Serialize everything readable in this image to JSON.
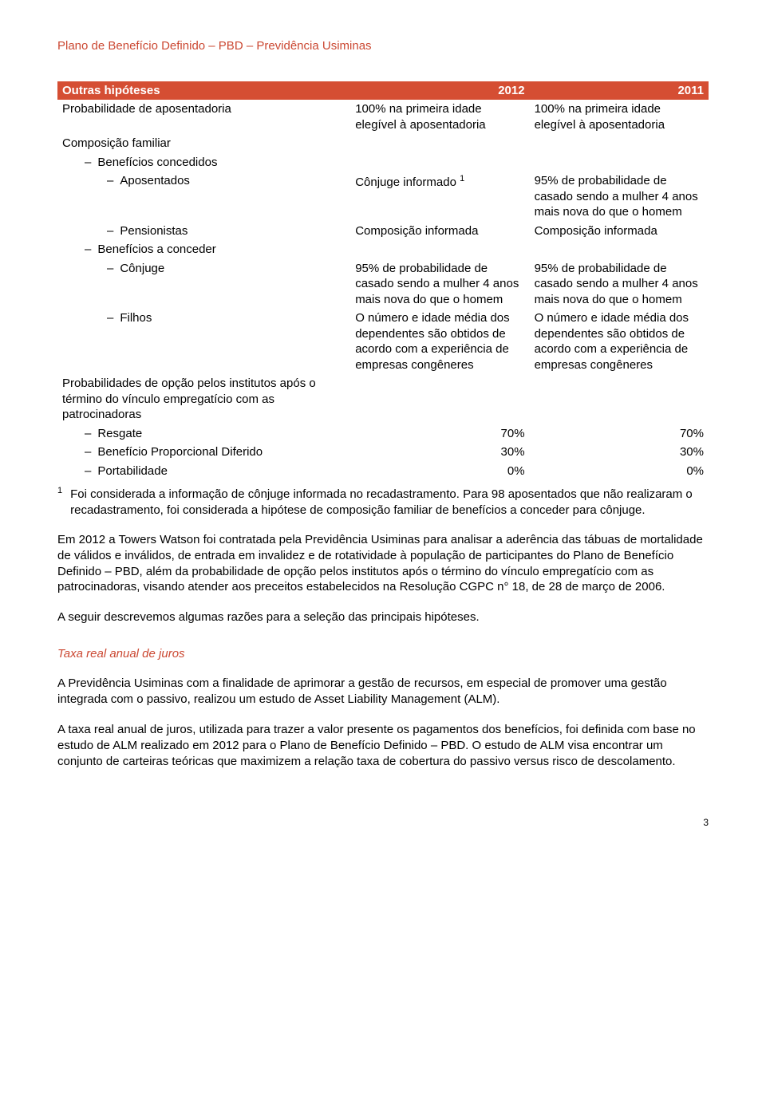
{
  "doc_title": "Plano de Benefício Definido – PBD – Previdência Usiminas",
  "table": {
    "header": {
      "label": "Outras hipóteses",
      "col_2012": "2012",
      "col_2011": "2011"
    },
    "rows": [
      {
        "label": "Probabilidade de aposentadoria",
        "indent": 0,
        "dash": false,
        "c1": "100% na primeira idade elegível à aposentadoria",
        "c2": "100% na primeira idade elegível à aposentadoria"
      },
      {
        "label": "Composição familiar",
        "indent": 0,
        "dash": false,
        "c1": "",
        "c2": ""
      },
      {
        "label": "Benefícios concedidos",
        "indent": 1,
        "dash": true,
        "c1": "",
        "c2": ""
      },
      {
        "label": "Aposentados",
        "indent": 2,
        "dash": true,
        "c1": "Cônjuge informado ",
        "c1_sup": "1",
        "c2": "95% de probabilidade de casado sendo a mulher 4 anos mais nova do que o homem"
      },
      {
        "label": "Pensionistas",
        "indent": 2,
        "dash": true,
        "c1": "Composição informada",
        "c2": "Composição informada"
      },
      {
        "label": "Benefícios a conceder",
        "indent": 1,
        "dash": true,
        "c1": "",
        "c2": ""
      },
      {
        "label": "Cônjuge",
        "indent": 2,
        "dash": true,
        "c1": "95% de probabilidade de casado sendo a mulher 4 anos mais nova do que o homem",
        "c2": "95% de probabilidade de casado sendo a mulher 4 anos mais nova do que o homem"
      },
      {
        "label": "Filhos",
        "indent": 2,
        "dash": true,
        "c1": "O número e idade média dos dependentes são obtidos de acordo com a experiência de empresas congêneres",
        "c2": "O número e idade média dos dependentes são obtidos de acordo com a experiência de empresas congêneres"
      },
      {
        "label": "Probabilidades de opção pelos institutos após o término do vínculo empregatício com as patrocinadoras",
        "indent": 0,
        "dash": false,
        "c1": "",
        "c2": ""
      },
      {
        "label": "Resgate",
        "indent": 1,
        "dash": true,
        "c1": "70%",
        "c2": "70%",
        "num": true
      },
      {
        "label": "Benefício Proporcional Diferido",
        "indent": 1,
        "dash": true,
        "c1": "30%",
        "c2": "30%",
        "num": true
      },
      {
        "label": "Portabilidade",
        "indent": 1,
        "dash": true,
        "c1": "0%",
        "c2": "0%",
        "num": true
      }
    ]
  },
  "footnote": {
    "index": "1",
    "text": "Foi considerada a informação de cônjuge informada no recadastramento. Para 98 aposentados que não realizaram o recadastramento, foi considerada a hipótese de composição familiar de benefícios a conceder para cônjuge."
  },
  "paragraph_1": "Em 2012 a Towers Watson foi contratada pela Previdência Usiminas para analisar a aderência das tábuas de mortalidade de válidos e inválidos, de entrada em invalidez e de rotatividade à população de participantes do Plano de Benefício Definido – PBD, além da probabilidade de opção pelos institutos após o término do vínculo empregatício com as patrocinadoras, visando atender aos preceitos estabelecidos na Resolução CGPC n° 18, de 28 de março de 2006.",
  "paragraph_2": "A seguir descrevemos algumas razões para a seleção das principais hipóteses.",
  "section_title": "Taxa real anual de juros",
  "paragraph_3": "A Previdência Usiminas com a finalidade de aprimorar a gestão de recursos, em especial de promover uma gestão integrada com o passivo, realizou um estudo de Asset Liability Management (ALM).",
  "paragraph_4": "A taxa real anual de juros, utilizada para trazer a valor presente os pagamentos dos benefícios, foi definida com base no estudo de ALM realizado em 2012 para o Plano de Benefício Definido – PBD. O estudo de ALM visa encontrar um conjunto de carteiras teóricas que maximizem a relação taxa de cobertura do passivo versus risco de descolamento.",
  "page_number": "3",
  "colors": {
    "accent": "#cb4832",
    "header_bg": "#d54e33",
    "header_text": "#ffffff",
    "body_text": "#000000",
    "background": "#ffffff"
  }
}
